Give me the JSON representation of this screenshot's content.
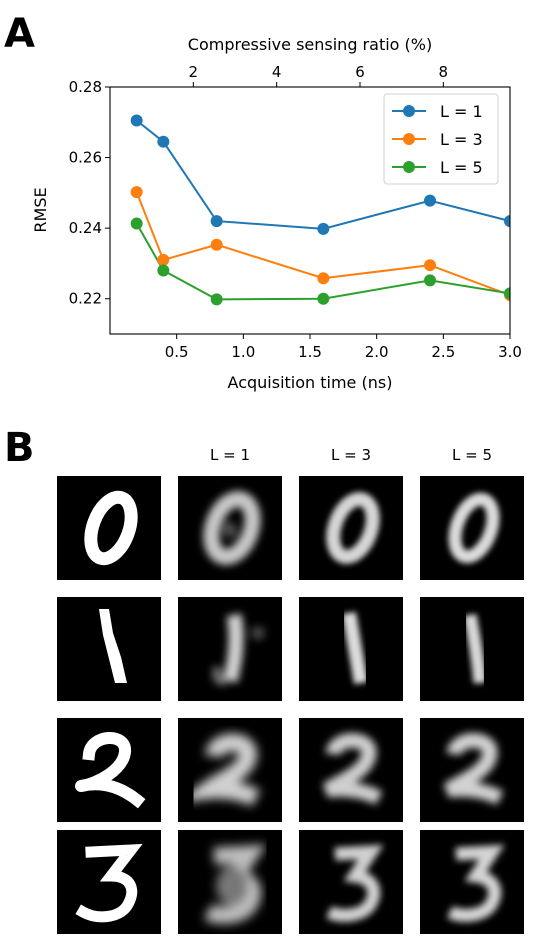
{
  "panel_a": {
    "letter": "A"
  },
  "panel_b": {
    "letter": "B",
    "column_labels": [
      "",
      "L = 1",
      "L = 3",
      "L = 5"
    ],
    "row_digits": [
      "0",
      "1",
      "2",
      "3"
    ]
  },
  "chart_data": {
    "type": "line",
    "title": "",
    "xlabel": "Acquisition time (ns)",
    "ylabel": "RMSE",
    "top_xlabel": "Compressive sensing ratio (%)",
    "xlim": [
      0.0,
      3.0
    ],
    "ylim": [
      0.21,
      0.28
    ],
    "x_ticks": [
      0.5,
      1.0,
      1.5,
      2.0,
      2.5,
      3.0
    ],
    "x_tick_labels": [
      "0.5",
      "1.0",
      "1.5",
      "2.0",
      "2.5",
      "3.0"
    ],
    "y_ticks": [
      0.22,
      0.24,
      0.26,
      0.28
    ],
    "y_tick_labels": [
      "0.22",
      "0.24",
      "0.26",
      "0.28"
    ],
    "top_ticks": [
      2,
      4,
      6,
      8
    ],
    "top_tick_labels": [
      "2",
      "4",
      "6",
      "8"
    ],
    "top_axis_scale": 3.2,
    "legend_position": "top-right",
    "grid": false,
    "x": [
      0.2,
      0.4,
      0.8,
      1.6,
      2.4,
      3.0
    ],
    "series": [
      {
        "name": "L = 1",
        "color": "#1f77b4",
        "values": [
          0.2705,
          0.2645,
          0.242,
          0.2398,
          0.2478,
          0.242
        ]
      },
      {
        "name": "L = 3",
        "color": "#ff7f0e",
        "values": [
          0.2502,
          0.231,
          0.2353,
          0.2258,
          0.2295,
          0.221
        ]
      },
      {
        "name": "L = 5",
        "color": "#2ca02c",
        "values": [
          0.2413,
          0.228,
          0.2198,
          0.22,
          0.2252,
          0.2215
        ]
      }
    ]
  }
}
